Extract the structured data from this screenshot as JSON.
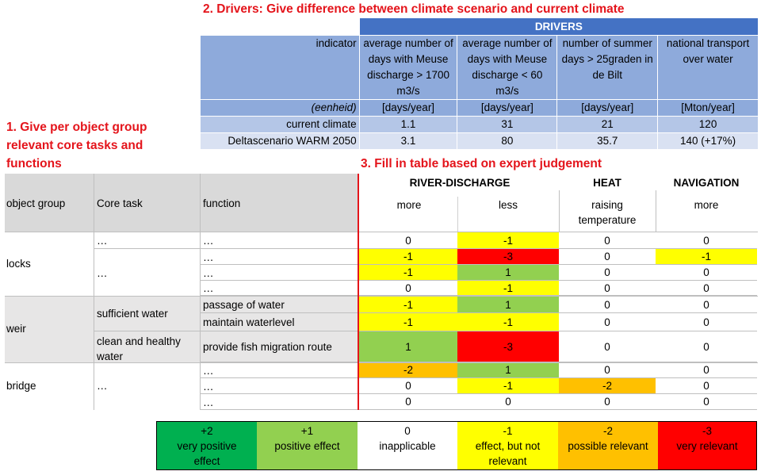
{
  "headings": {
    "drivers": "2. Drivers: Give difference between climate scenario and current climate",
    "object_group_1": "1. Give per object group",
    "object_group_2": "relevant core tasks and",
    "object_group_3": "functions",
    "fill": "3. Fill in table based on expert judgement"
  },
  "drivers": {
    "title": "DRIVERS",
    "indicator_label": "indicator",
    "unit_label": "(eenheid)",
    "columns": [
      {
        "lines": [
          "average number of",
          "days with Meuse",
          "discharge > 1700",
          "m3/s"
        ],
        "unit": "[days/year]"
      },
      {
        "lines": [
          "average number of",
          "days with Meuse",
          "discharge < 60",
          "m3/s"
        ],
        "unit": "[days/year]"
      },
      {
        "lines": [
          "number of summer",
          "days > 25graden in",
          "de Bilt",
          ""
        ],
        "unit": "[days/year]"
      },
      {
        "lines": [
          "national transport",
          "over water",
          "",
          ""
        ],
        "unit": "[Mton/year]"
      }
    ],
    "rows": [
      {
        "label": "current climate",
        "values": [
          "1.1",
          "31",
          "21",
          "120"
        ]
      },
      {
        "label": "Deltascenario WARM 2050",
        "values": [
          "3.1",
          "80",
          "35.7",
          "140 (+17%)"
        ]
      }
    ]
  },
  "main": {
    "headers": {
      "object_group": "object group",
      "core_task": "Core task",
      "function": "function",
      "river_discharge": "RIVER-DISCHARGE",
      "heat": "HEAT",
      "navigation": "NAVIGATION",
      "more": "more",
      "less": "less",
      "raising_1": "raising",
      "raising_2": "temperature",
      "nav_more": "more"
    },
    "groups": [
      {
        "name": "locks"
      },
      {
        "name": "weir"
      },
      {
        "name": "bridge"
      }
    ],
    "core_tasks": {
      "locks_a": "…",
      "locks_b": "…",
      "weir_a": "sufficient water",
      "weir_b1": "clean and healthy",
      "weir_b2": "water",
      "bridge": "…"
    },
    "rows": [
      {
        "function": "…",
        "values": [
          "0",
          "-1",
          "0",
          "0"
        ],
        "colors": [
          "",
          "yellow",
          "",
          ""
        ]
      },
      {
        "function": "…",
        "values": [
          "-1",
          "-3",
          "0",
          "-1"
        ],
        "colors": [
          "yellow",
          "red",
          "",
          "yellow"
        ]
      },
      {
        "function": "…",
        "values": [
          "-1",
          "1",
          "0",
          "0"
        ],
        "colors": [
          "yellow",
          "green",
          "",
          ""
        ]
      },
      {
        "function": "…",
        "values": [
          "0",
          "-1",
          "0",
          "0"
        ],
        "colors": [
          "",
          "yellow",
          "",
          ""
        ]
      },
      {
        "function": "passage of water",
        "values": [
          "-1",
          "1",
          "0",
          "0"
        ],
        "colors": [
          "yellow",
          "green",
          "",
          ""
        ]
      },
      {
        "function": "maintain waterlevel",
        "values": [
          "-1",
          "-1",
          "0",
          "0"
        ],
        "colors": [
          "yellow",
          "yellow",
          "",
          ""
        ]
      },
      {
        "function": "provide fish migration route",
        "values": [
          "1",
          "-3",
          "0",
          "0"
        ],
        "colors": [
          "green",
          "red",
          "",
          ""
        ]
      },
      {
        "function": "…",
        "values": [
          "-2",
          "1",
          "0",
          "0"
        ],
        "colors": [
          "orange",
          "green",
          "",
          ""
        ]
      },
      {
        "function": "…",
        "values": [
          "0",
          "-1",
          "-2",
          "0"
        ],
        "colors": [
          "",
          "yellow",
          "orange",
          ""
        ]
      },
      {
        "function": "…",
        "values": [
          "0",
          "0",
          "0",
          "0"
        ],
        "colors": [
          "",
          "",
          "",
          ""
        ]
      }
    ]
  },
  "legend": [
    {
      "value": "+2",
      "l1": "very positive",
      "l2": "effect",
      "color": "#00b050"
    },
    {
      "value": "+1",
      "l1": "positive effect",
      "l2": "",
      "color": "#92d050"
    },
    {
      "value": "0",
      "l1": "inapplicable",
      "l2": "",
      "color": "#ffffff"
    },
    {
      "value": "-1",
      "l1": "effect, but not",
      "l2": "relevant",
      "color": "#ffff00"
    },
    {
      "value": "-2",
      "l1": "possible relevant",
      "l2": "",
      "color": "#ffc000"
    },
    {
      "value": "-3",
      "l1": "very relevant",
      "l2": "",
      "color": "#ff0000"
    }
  ]
}
